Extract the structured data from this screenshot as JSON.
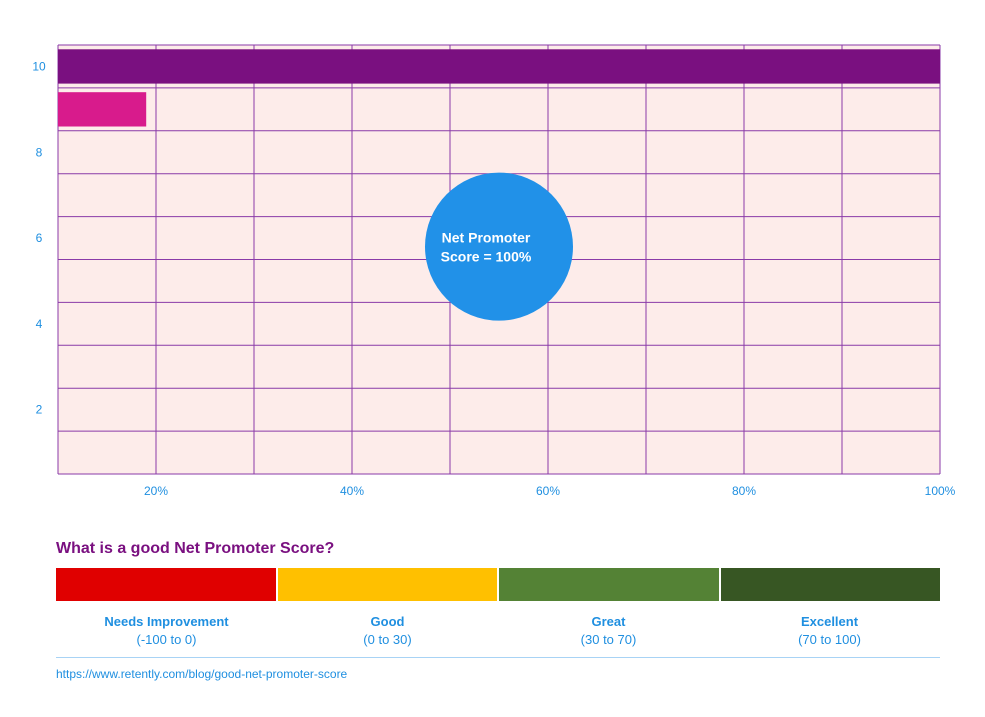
{
  "chart_data": {
    "type": "bar",
    "orientation": "horizontal",
    "xlim": [
      10,
      100
    ],
    "ylim": [
      0.5,
      10.5
    ],
    "x_ticks": [
      "20%",
      "40%",
      "60%",
      "80%",
      "100%"
    ],
    "y_ticks": [
      "10",
      "8",
      "6",
      "4",
      "2"
    ],
    "bars": [
      {
        "y": 10,
        "value": 100,
        "color": "#7a1080"
      },
      {
        "y": 9,
        "value": 19,
        "color": "#d81b8c"
      }
    ],
    "annotation": {
      "line1": "Net Promoter",
      "line2": "Score = 100%",
      "x": 55,
      "y": 5.8,
      "color": "#2191e8"
    },
    "plot_bg": "#fdecea",
    "grid_color": "#8a3aa8",
    "grid": true
  },
  "scale": {
    "question": "What is a good Net Promoter Score?",
    "bands": [
      {
        "name": "Needs Improvement",
        "range": "(-100 to 0)",
        "color": "#e00000"
      },
      {
        "name": "Good",
        "range": "(0 to 30)",
        "color": "#ffc000"
      },
      {
        "name": "Great",
        "range": "(30 to 70)",
        "color": "#548235"
      },
      {
        "name": "Excellent",
        "range": "(70 to 100)",
        "color": "#375623"
      }
    ]
  },
  "source": "https://www.retently.com/blog/good-net-promoter-score"
}
